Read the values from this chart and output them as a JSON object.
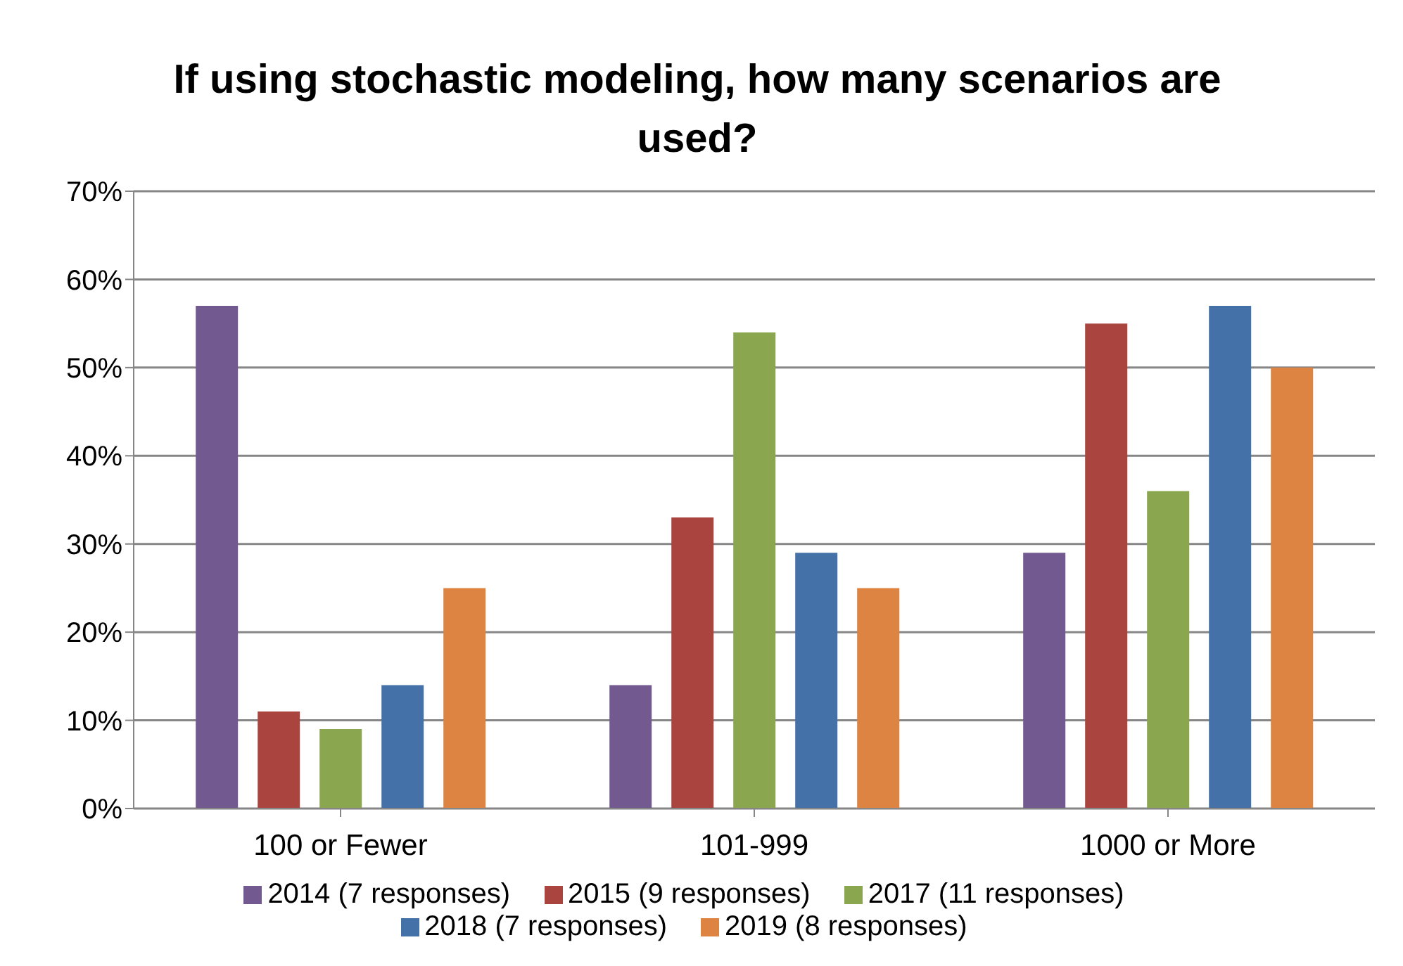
{
  "chart_data": {
    "type": "bar",
    "title": "If using stochastic modeling, how many scenarios are used?",
    "categories": [
      "100 or Fewer",
      "101-999",
      "1000 or More"
    ],
    "series": [
      {
        "name": "2014 (7 responses)",
        "color": "#725990",
        "values": [
          57,
          14,
          29
        ]
      },
      {
        "name": "2015 (9 responses)",
        "color": "#a9443f",
        "values": [
          11,
          33,
          55
        ]
      },
      {
        "name": "2017 (11 responses)",
        "color": "#8aa64f",
        "values": [
          9,
          54,
          36
        ]
      },
      {
        "name": "2018 (7 responses)",
        "color": "#4472a8",
        "values": [
          14,
          29,
          57
        ]
      },
      {
        "name": "2019 (8 responses)",
        "color": "#dd8443",
        "values": [
          25,
          25,
          50
        ]
      }
    ],
    "ylim": [
      0,
      70
    ],
    "yticks": [
      {
        "value": 0,
        "label": "0%"
      },
      {
        "value": 10,
        "label": "10%"
      },
      {
        "value": 20,
        "label": "20%"
      },
      {
        "value": 30,
        "label": "30%"
      },
      {
        "value": 40,
        "label": "40%"
      },
      {
        "value": 50,
        "label": "50%"
      },
      {
        "value": 60,
        "label": "60%"
      },
      {
        "value": 70,
        "label": "70%"
      }
    ],
    "grid": "y",
    "legend": "bottom"
  }
}
